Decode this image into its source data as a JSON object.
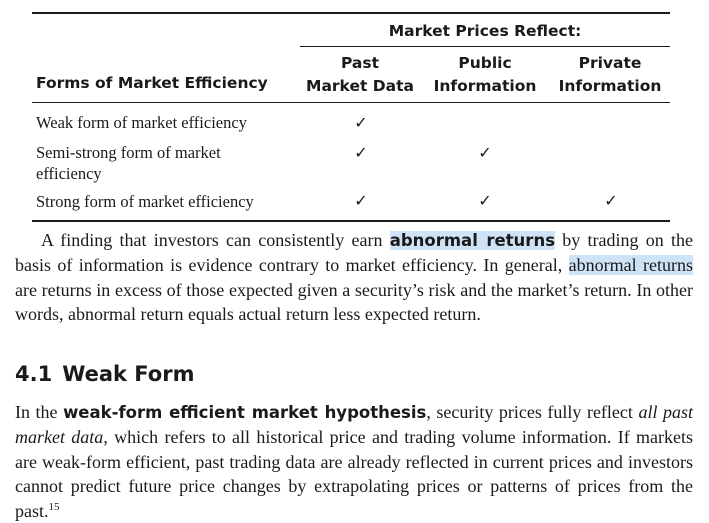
{
  "table": {
    "group_header": "Market Prices Reflect:",
    "row_header": "Forms of Market Efficiency",
    "columns": [
      {
        "line1": "Past",
        "line2": "Market Data"
      },
      {
        "line1": "Public",
        "line2": "Information"
      },
      {
        "line1": "Private",
        "line2": "Information"
      }
    ],
    "rows": [
      {
        "label": "Weak form of market efficiency",
        "checks": [
          "✓",
          "",
          ""
        ]
      },
      {
        "label": "Semi-strong form of market efficiency",
        "checks": [
          "✓",
          "✓",
          ""
        ]
      },
      {
        "label": "Strong form of market efficiency",
        "checks": [
          "✓",
          "✓",
          "✓"
        ]
      }
    ]
  },
  "paragraph1": {
    "before": "A finding that investors can consistently earn ",
    "term": "abnormal returns",
    "middle": " by trading on the basis of information is evidence contrary to market efficiency. In general, ",
    "highlight": "abnormal returns",
    "after": " are returns in excess of those expected given a security’s risk and the market’s return. In other words, abnormal return equals actual return less expected return."
  },
  "section": {
    "number": "4.1",
    "title": "Weak Form"
  },
  "paragraph2": {
    "before": "In the ",
    "term": "weak-form efficient market hypothesis",
    "middle": ", security prices fully reflect ",
    "italic": "all past market data",
    "after": ", which refers to all historical price and trading volume information. If markets are weak-form efficient, past trading data are already reflected in current prices and investors cannot predict future price changes by extrapolating prices or patterns of prices from the past.",
    "footnote": "15"
  }
}
